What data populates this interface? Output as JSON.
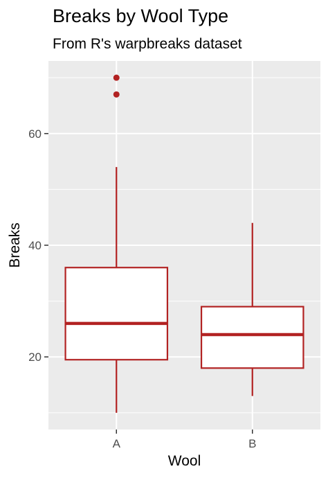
{
  "chart_data": {
    "type": "boxplot",
    "title": "Breaks by Wool Type",
    "subtitle": "From R's warpbreaks dataset",
    "xlabel": "Wool",
    "ylabel": "Breaks",
    "categories": [
      "A",
      "B"
    ],
    "ylim": [
      7,
      73
    ],
    "yticks": [
      20,
      40,
      60
    ],
    "grid": true,
    "legend": "none",
    "boxes": [
      {
        "category": "A",
        "min": 10,
        "q1": 19.5,
        "median": 26,
        "q3": 36,
        "max": 54,
        "outliers": [
          70,
          67
        ]
      },
      {
        "category": "B",
        "min": 13,
        "q1": 18,
        "median": 24,
        "q3": 29,
        "max": 44,
        "outliers": []
      }
    ],
    "colors": {
      "box": "#b22222",
      "panel": "#ebebeb",
      "grid": "#ffffff",
      "box_fill": "#ffffff"
    }
  }
}
